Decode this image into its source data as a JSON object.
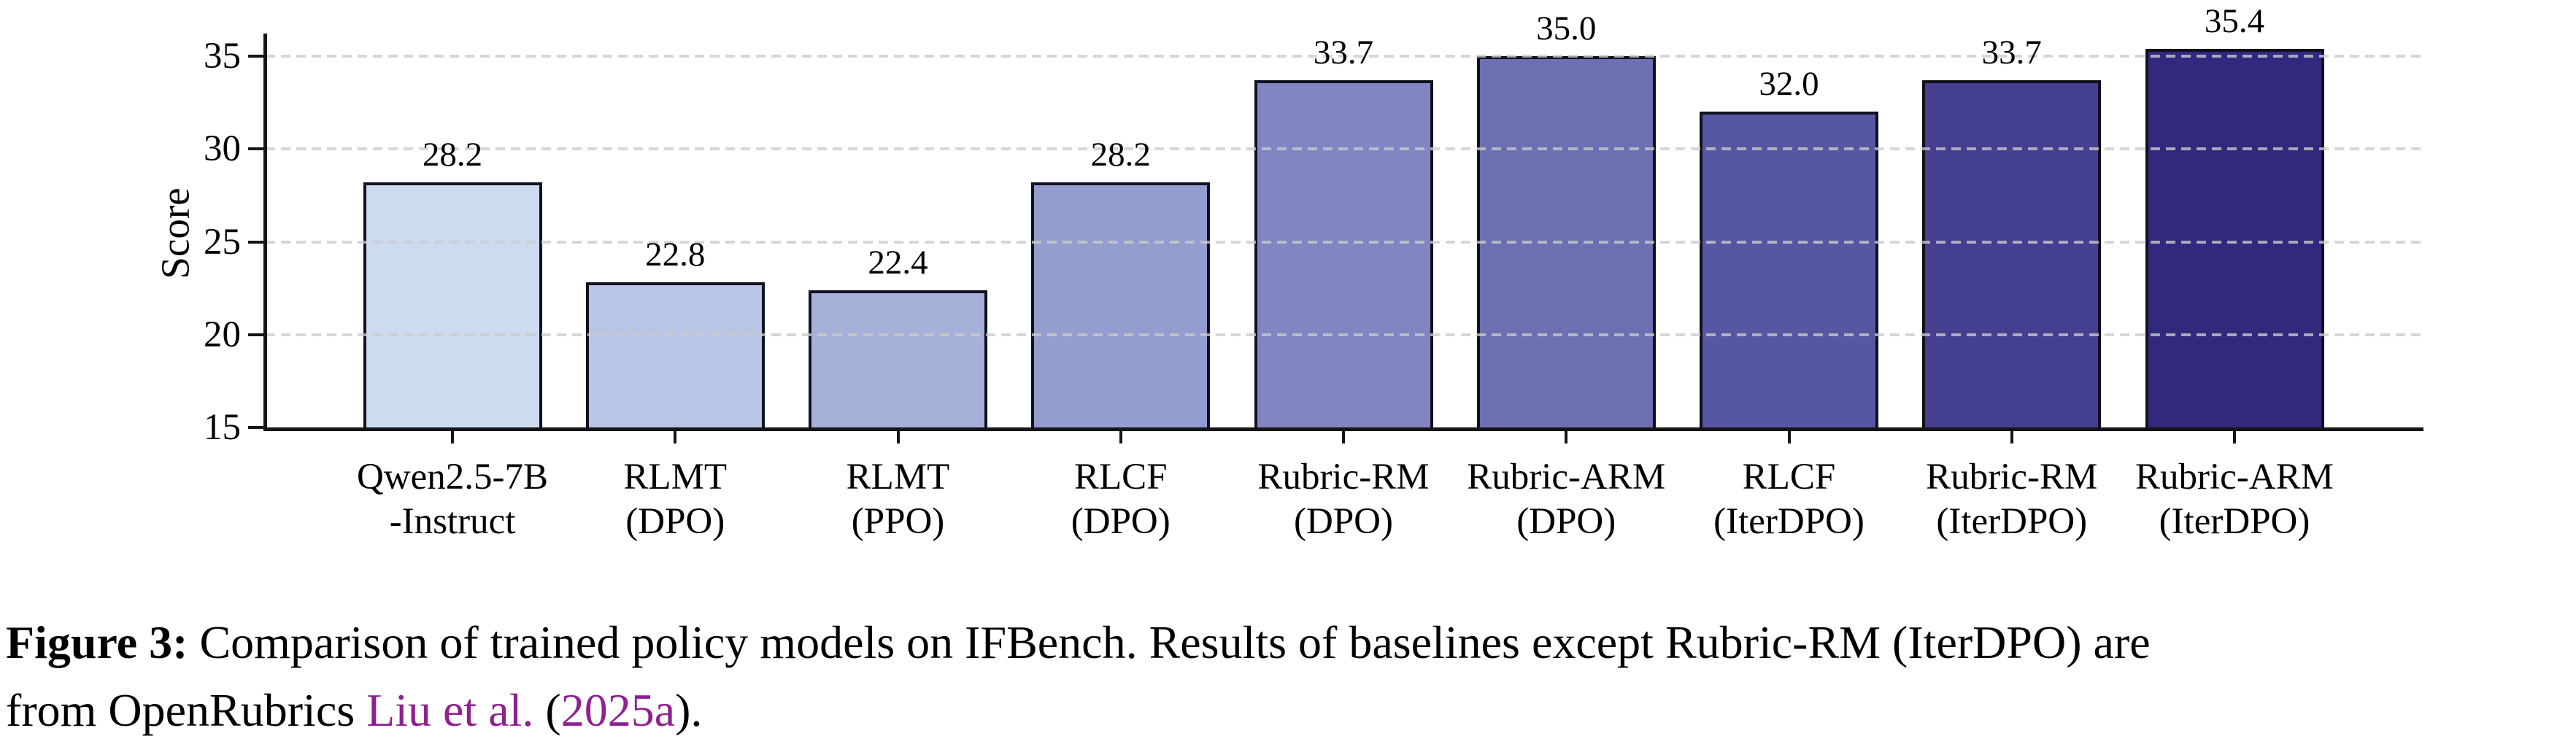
{
  "figure": {
    "caption": {
      "link_color": "#8e2190",
      "lines": [
        [
          {
            "text": "Figure 3:",
            "bold": true
          },
          {
            "text": " Comparison of trained policy models on IFBench. Results of baselines except Rubric-RM (IterDPO) are"
          }
        ],
        [
          {
            "text": "from OpenRubrics "
          },
          {
            "text": "Liu et al.",
            "link": true,
            "name": "citation-link-liu-et-al"
          },
          {
            "text": " ("
          },
          {
            "text": "2025a",
            "link": true,
            "name": "citation-link-2025a"
          },
          {
            "text": ")."
          }
        ]
      ]
    }
  },
  "chart_data": {
    "type": "bar",
    "title": "",
    "xlabel": "",
    "ylabel": "Score",
    "ylim": [
      15,
      36.3
    ],
    "yticks": [
      15,
      20,
      25,
      30,
      35
    ],
    "grid": "horizontal dashed gridlines drawn above bars",
    "legend": "none",
    "categories": [
      "Qwen2.5-7B\n-Instruct",
      "RLMT\n(DPO)",
      "RLMT\n(PPO)",
      "RLCF\n(DPO)",
      "Rubric-RM\n(DPO)",
      "Rubric-ARM\n(DPO)",
      "RLCF\n(IterDPO)",
      "Rubric-RM\n(IterDPO)",
      "Rubric-ARM\n(IterDPO)"
    ],
    "values": [
      28.2,
      22.8,
      22.4,
      28.2,
      33.7,
      35.0,
      32.0,
      33.7,
      35.4
    ],
    "value_labels": [
      "28.2",
      "22.8",
      "22.4",
      "28.2",
      "33.7",
      "35.0",
      "32.0",
      "33.7",
      "35.4"
    ],
    "bar_colors": [
      "#ccdbf0",
      "#b8c5e4",
      "#a6b1da",
      "#949dcf",
      "#8086c2",
      "#6c70b3",
      "#5756a2",
      "#443f90",
      "#31297d"
    ],
    "bar_edge_color": "#11101e",
    "grid_color": "#cbcbcb",
    "axis_color": "#151515",
    "text_color": "#000000"
  }
}
